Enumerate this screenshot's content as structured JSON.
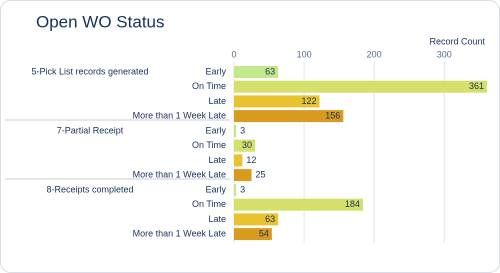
{
  "chart_data": {
    "type": "bar",
    "orientation": "horizontal",
    "title": "Open WO Status",
    "x_label": "Record Count",
    "categories": [
      "5-Pick List records generated",
      "7-Partial Receipt",
      "8-Receipts completed"
    ],
    "series": [
      {
        "name": "Early",
        "color": "#c3e88b",
        "values": [
          63,
          3,
          3
        ]
      },
      {
        "name": "On Time",
        "color": "#d5e06a",
        "values": [
          361,
          30,
          184
        ]
      },
      {
        "name": "Late",
        "color": "#e9c22f",
        "values": [
          122,
          12,
          63
        ]
      },
      {
        "name": "More than 1 Week Late",
        "color": "#d99b1e",
        "values": [
          156,
          25,
          54
        ]
      }
    ],
    "xlim": [
      0,
      361
    ],
    "xticks": [
      0,
      100,
      200,
      300
    ],
    "grid": true
  }
}
